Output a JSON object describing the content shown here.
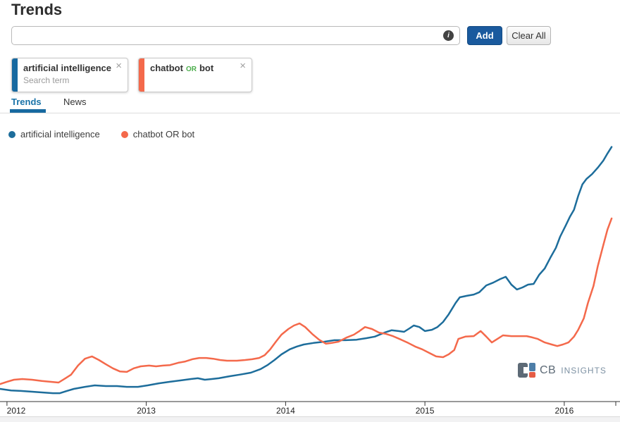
{
  "page": {
    "title": "Trends"
  },
  "toolbar": {
    "search_value": "",
    "search_placeholder": "",
    "add_label": "Add",
    "add_color": "#1a5a9e",
    "clear_all_label": "Clear All",
    "info_icon": "i"
  },
  "tag_cards": {
    "card1": {
      "label": "artificial intelligence",
      "sublabel": "Search term",
      "close": "×",
      "accent_color": "#1769a0"
    },
    "card2": {
      "term1": "chatbot",
      "operator": "OR",
      "term2": "bot",
      "close": "×",
      "accent_color": "#f4694b"
    }
  },
  "tabs": {
    "items": [
      {
        "label": "Trends"
      },
      {
        "label": "News"
      }
    ],
    "active": "Trends",
    "accent_color": "#1769a0"
  },
  "legend": {
    "items": [
      {
        "label": "artificial intelligence",
        "color": "#1d6d9b"
      },
      {
        "label": "chatbot OR bot",
        "color": "#f4694b"
      }
    ]
  },
  "brand": {
    "cb": "CB",
    "insights": "INSIGHTS",
    "slate": "#5d6a76",
    "blue": "#4d7ea8",
    "orange": "#e55c45"
  },
  "chart_data": {
    "type": "line",
    "title": "",
    "xlabel": "",
    "ylabel": "",
    "grid": false,
    "legend_position": "top-left",
    "x_ticks": [
      2012,
      2013,
      2014,
      2015,
      2016
    ],
    "xlim": [
      2011.95,
      2016.4
    ],
    "ylim": [
      0,
      101.5
    ],
    "y_axis_visible": false,
    "series": [
      {
        "name": "artificial intelligence",
        "color": "#1d6d9b",
        "points": [
          [
            2011.95,
            5.0
          ],
          [
            2012.03,
            4.4
          ],
          [
            2012.1,
            4.2
          ],
          [
            2012.18,
            3.9
          ],
          [
            2012.25,
            3.6
          ],
          [
            2012.33,
            3.3
          ],
          [
            2012.38,
            3.3
          ],
          [
            2012.43,
            4.2
          ],
          [
            2012.48,
            5.0
          ],
          [
            2012.56,
            5.8
          ],
          [
            2012.63,
            6.4
          ],
          [
            2012.71,
            6.1
          ],
          [
            2012.79,
            6.1
          ],
          [
            2012.86,
            5.8
          ],
          [
            2012.94,
            5.8
          ],
          [
            2013.01,
            6.4
          ],
          [
            2013.09,
            7.2
          ],
          [
            2013.17,
            7.8
          ],
          [
            2013.24,
            8.3
          ],
          [
            2013.32,
            8.9
          ],
          [
            2013.37,
            9.2
          ],
          [
            2013.42,
            8.6
          ],
          [
            2013.47,
            8.9
          ],
          [
            2013.52,
            9.2
          ],
          [
            2013.6,
            10.0
          ],
          [
            2013.67,
            10.6
          ],
          [
            2013.75,
            11.4
          ],
          [
            2013.82,
            12.8
          ],
          [
            2013.87,
            14.4
          ],
          [
            2013.92,
            16.4
          ],
          [
            2013.97,
            18.6
          ],
          [
            2014.03,
            20.6
          ],
          [
            2014.08,
            21.7
          ],
          [
            2014.13,
            22.5
          ],
          [
            2014.2,
            23.1
          ],
          [
            2014.28,
            23.6
          ],
          [
            2014.35,
            24.2
          ],
          [
            2014.43,
            24.2
          ],
          [
            2014.51,
            24.4
          ],
          [
            2014.58,
            25.0
          ],
          [
            2014.64,
            25.6
          ],
          [
            2014.71,
            27.2
          ],
          [
            2014.76,
            28.1
          ],
          [
            2014.81,
            27.8
          ],
          [
            2014.85,
            27.5
          ],
          [
            2014.89,
            28.9
          ],
          [
            2014.92,
            30.0
          ],
          [
            2014.96,
            29.4
          ],
          [
            2015.0,
            27.8
          ],
          [
            2015.05,
            28.3
          ],
          [
            2015.09,
            29.4
          ],
          [
            2015.13,
            31.4
          ],
          [
            2015.17,
            34.4
          ],
          [
            2015.22,
            38.9
          ],
          [
            2015.25,
            41.1
          ],
          [
            2015.3,
            41.7
          ],
          [
            2015.35,
            42.2
          ],
          [
            2015.39,
            43.1
          ],
          [
            2015.44,
            45.8
          ],
          [
            2015.49,
            46.9
          ],
          [
            2015.54,
            48.3
          ],
          [
            2015.58,
            49.2
          ],
          [
            2015.62,
            46.1
          ],
          [
            2015.66,
            44.2
          ],
          [
            2015.7,
            45.0
          ],
          [
            2015.74,
            46.1
          ],
          [
            2015.78,
            46.4
          ],
          [
            2015.82,
            50.0
          ],
          [
            2015.86,
            52.5
          ],
          [
            2015.9,
            56.7
          ],
          [
            2015.94,
            60.6
          ],
          [
            2015.97,
            65.0
          ],
          [
            2016.01,
            69.4
          ],
          [
            2016.04,
            72.8
          ],
          [
            2016.07,
            75.6
          ],
          [
            2016.1,
            81.1
          ],
          [
            2016.13,
            85.6
          ],
          [
            2016.16,
            87.8
          ],
          [
            2016.2,
            89.7
          ],
          [
            2016.24,
            92.2
          ],
          [
            2016.28,
            95.0
          ],
          [
            2016.31,
            97.8
          ],
          [
            2016.34,
            100.4
          ]
        ]
      },
      {
        "name": "chatbot OR bot",
        "color": "#f4694b",
        "points": [
          [
            2011.95,
            6.9
          ],
          [
            2012.0,
            7.8
          ],
          [
            2012.05,
            8.6
          ],
          [
            2012.11,
            8.9
          ],
          [
            2012.18,
            8.6
          ],
          [
            2012.25,
            8.1
          ],
          [
            2012.31,
            7.8
          ],
          [
            2012.37,
            7.5
          ],
          [
            2012.42,
            9.2
          ],
          [
            2012.46,
            10.6
          ],
          [
            2012.51,
            14.2
          ],
          [
            2012.56,
            16.9
          ],
          [
            2012.61,
            17.8
          ],
          [
            2012.66,
            16.4
          ],
          [
            2012.71,
            14.7
          ],
          [
            2012.76,
            13.1
          ],
          [
            2012.81,
            11.9
          ],
          [
            2012.86,
            11.7
          ],
          [
            2012.91,
            13.1
          ],
          [
            2012.96,
            13.9
          ],
          [
            2013.02,
            14.2
          ],
          [
            2013.07,
            13.9
          ],
          [
            2013.12,
            14.2
          ],
          [
            2013.17,
            14.4
          ],
          [
            2013.23,
            15.3
          ],
          [
            2013.28,
            15.8
          ],
          [
            2013.33,
            16.7
          ],
          [
            2013.38,
            17.2
          ],
          [
            2013.43,
            17.2
          ],
          [
            2013.48,
            16.9
          ],
          [
            2013.53,
            16.4
          ],
          [
            2013.58,
            16.1
          ],
          [
            2013.65,
            16.1
          ],
          [
            2013.71,
            16.4
          ],
          [
            2013.76,
            16.7
          ],
          [
            2013.81,
            17.2
          ],
          [
            2013.85,
            18.3
          ],
          [
            2013.89,
            20.6
          ],
          [
            2013.93,
            23.6
          ],
          [
            2013.97,
            26.4
          ],
          [
            2014.02,
            28.6
          ],
          [
            2014.06,
            30.0
          ],
          [
            2014.1,
            30.8
          ],
          [
            2014.14,
            29.4
          ],
          [
            2014.19,
            26.7
          ],
          [
            2014.24,
            24.4
          ],
          [
            2014.29,
            22.8
          ],
          [
            2014.33,
            23.1
          ],
          [
            2014.38,
            23.6
          ],
          [
            2014.44,
            25.3
          ],
          [
            2014.49,
            26.4
          ],
          [
            2014.53,
            27.8
          ],
          [
            2014.57,
            29.4
          ],
          [
            2014.62,
            28.6
          ],
          [
            2014.67,
            27.2
          ],
          [
            2014.72,
            26.7
          ],
          [
            2014.77,
            25.8
          ],
          [
            2014.83,
            24.4
          ],
          [
            2014.88,
            23.1
          ],
          [
            2014.93,
            21.7
          ],
          [
            2014.98,
            20.6
          ],
          [
            2015.03,
            19.2
          ],
          [
            2015.08,
            17.8
          ],
          [
            2015.13,
            17.5
          ],
          [
            2015.17,
            18.6
          ],
          [
            2015.21,
            20.3
          ],
          [
            2015.24,
            24.7
          ],
          [
            2015.29,
            25.6
          ],
          [
            2015.35,
            25.8
          ],
          [
            2015.4,
            27.8
          ],
          [
            2015.44,
            25.6
          ],
          [
            2015.48,
            23.3
          ],
          [
            2015.52,
            24.7
          ],
          [
            2015.56,
            26.1
          ],
          [
            2015.62,
            25.8
          ],
          [
            2015.68,
            25.8
          ],
          [
            2015.73,
            25.8
          ],
          [
            2015.77,
            25.3
          ],
          [
            2015.81,
            24.7
          ],
          [
            2015.86,
            23.3
          ],
          [
            2015.91,
            22.5
          ],
          [
            2015.95,
            21.9
          ],
          [
            2015.99,
            22.5
          ],
          [
            2016.03,
            23.3
          ],
          [
            2016.07,
            25.6
          ],
          [
            2016.1,
            28.3
          ],
          [
            2016.14,
            32.8
          ],
          [
            2016.17,
            38.9
          ],
          [
            2016.21,
            45.6
          ],
          [
            2016.24,
            53.3
          ],
          [
            2016.28,
            61.7
          ],
          [
            2016.31,
            67.8
          ],
          [
            2016.34,
            72.2
          ]
        ]
      }
    ]
  }
}
